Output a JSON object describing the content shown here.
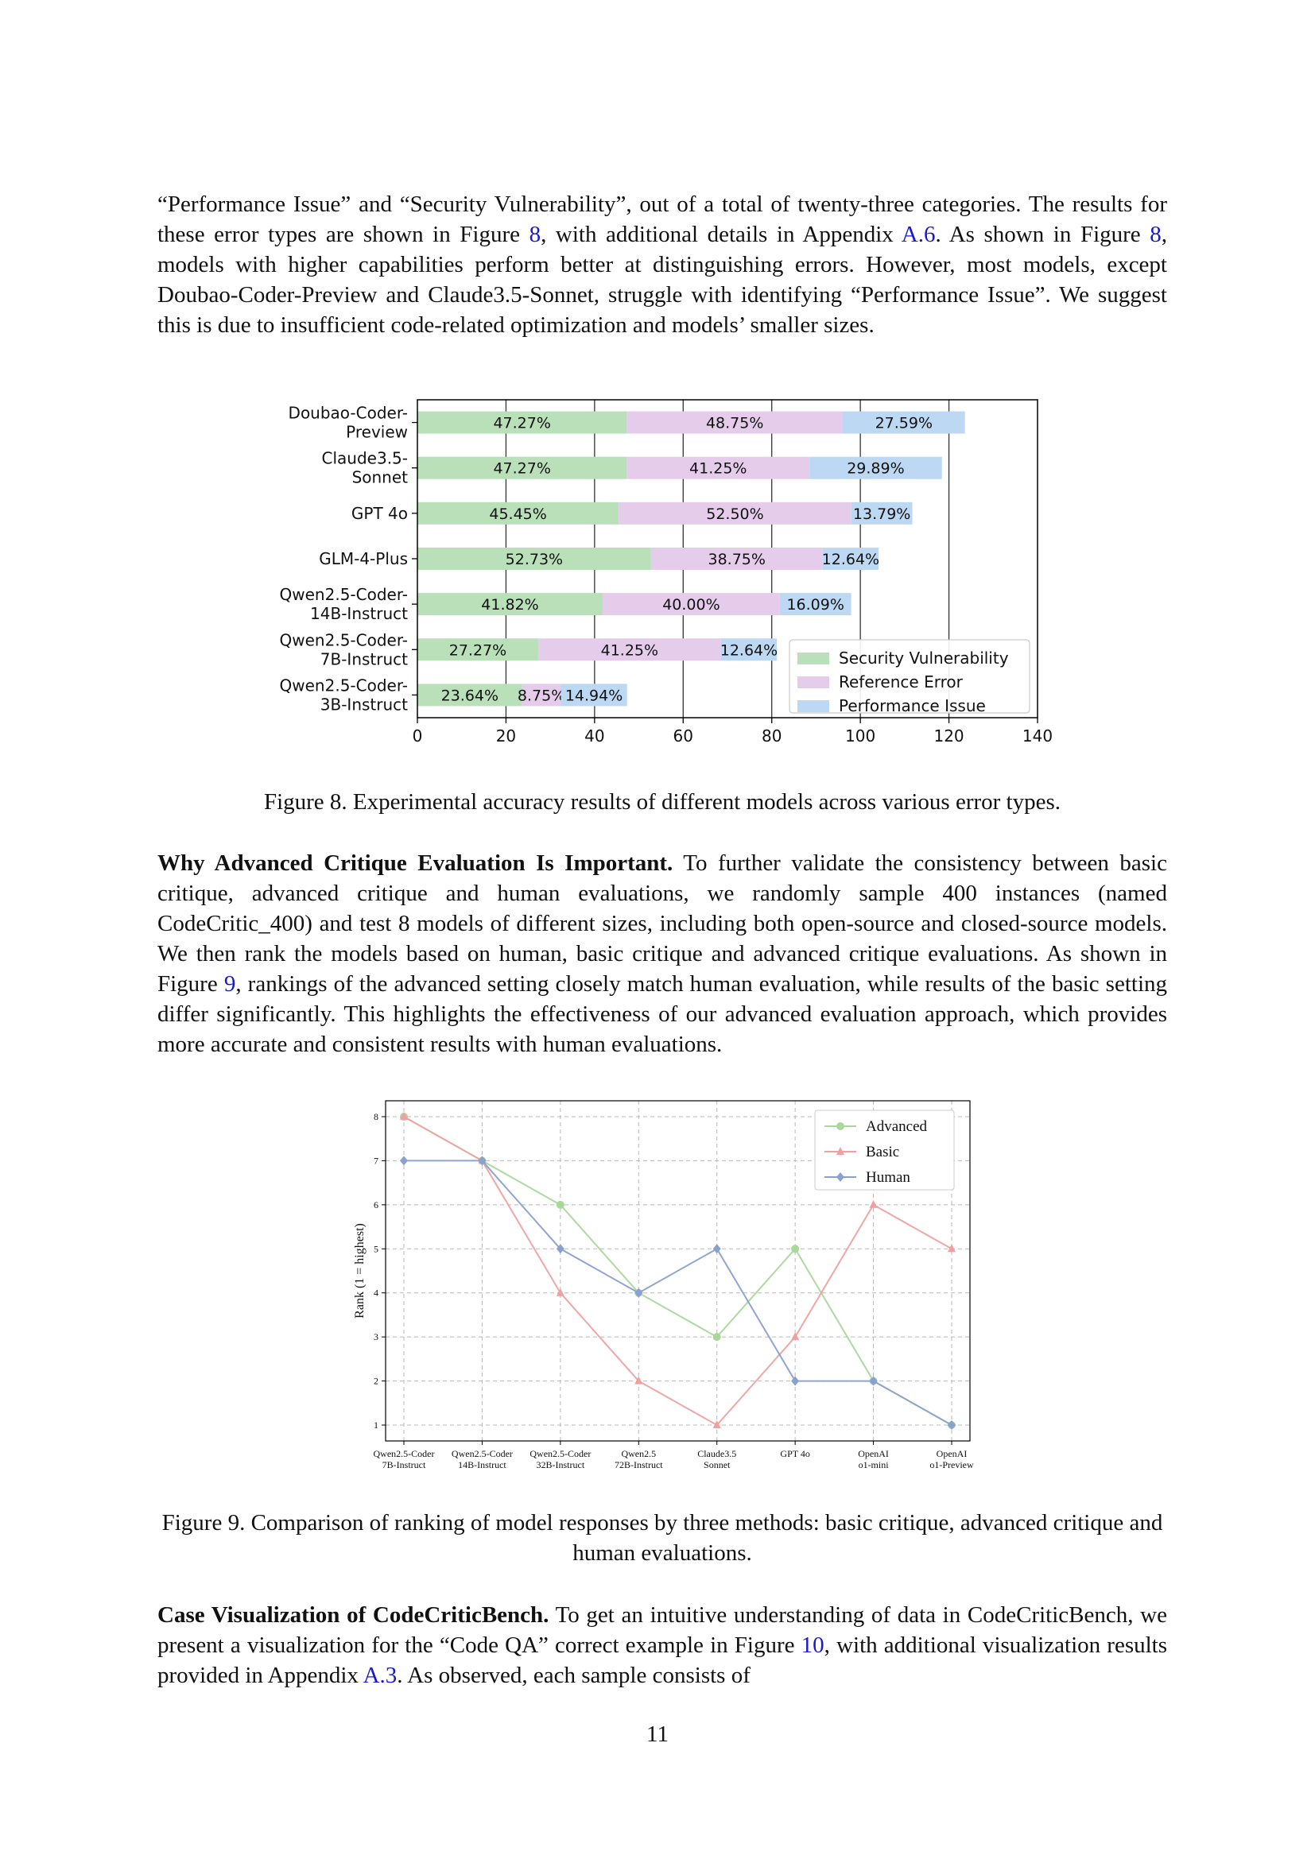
{
  "paragraphs": {
    "p1": {
      "t1": "“Performance Issue” and “Security Vulnerability”, out of a total of twenty-three categories. The results for these error types are shown in Figure ",
      "ref1": "8",
      "t2": ", with additional details in Appendix ",
      "ref2": "A.6",
      "t3": ". As shown in Figure ",
      "ref3": "8",
      "t4": ", models with higher capabilities perform better at distinguishing errors. However, most models, except Doubao-Coder-Preview and Claude3.5-Sonnet, struggle with identifying “Performance Issue”. We suggest this is due to insufficient code-related optimization and models’ smaller sizes."
    },
    "p2": {
      "heading": "Why Advanced Critique Evaluation Is Important.",
      "t1": " To further validate the consistency between basic critique, advanced critique and human evaluations, we randomly sample 400 instances (named CodeCritic_400) and test 8 models of different sizes, including both open-source and closed-source models. We then rank the models based on human, basic critique and advanced critique evaluations.  As shown in Figure ",
      "ref1": "9",
      "t2": ", rankings of the advanced setting closely match human evaluation, while results of the basic setting differ significantly.  This highlights the effectiveness of our advanced evaluation approach, which provides more accurate and consistent results with human evaluations."
    },
    "p3": {
      "heading": "Case Visualization of CodeCriticBench.",
      "t1": " To get an intuitive understanding of data in CodeCriticBench, we present a visualization for the “Code QA” correct example in Figure ",
      "ref1": "10",
      "t2": ", with additional visualization results provided in Appendix ",
      "ref2": "A.3",
      "t3": ". As observed, each sample consists of"
    }
  },
  "captions": {
    "fig8": "Figure 8. Experimental accuracy results of different models across various error types.",
    "fig9": "Figure 9. Comparison of ranking of model responses by three methods: basic critique, advanced critique and human evaluations."
  },
  "page_number": "11",
  "colors": {
    "security": "#b9e0b9",
    "reference": "#e5cceb",
    "performance": "#bcd8f2",
    "advanced": "#a8d89a",
    "basic": "#f0a0a0",
    "human": "#8aa0d0"
  },
  "chart_data": [
    {
      "type": "bar",
      "orientation": "horizontal",
      "stacked": true,
      "categories": [
        [
          "Doubao-Coder-",
          "Preview"
        ],
        [
          "Claude3.5-",
          "Sonnet"
        ],
        [
          "GPT 4o"
        ],
        [
          "GLM-4-Plus"
        ],
        [
          "Qwen2.5-Coder-",
          "14B-Instruct"
        ],
        [
          "Qwen2.5-Coder-",
          "7B-Instruct"
        ],
        [
          "Qwen2.5-Coder-",
          "3B-Instruct"
        ]
      ],
      "series": [
        {
          "name": "Security Vulnerability",
          "values": [
            47.27,
            47.27,
            45.45,
            52.73,
            41.82,
            27.27,
            23.64
          ],
          "labels": [
            "47.27%",
            "47.27%",
            "45.45%",
            "52.73%",
            "41.82%",
            "27.27%",
            "23.64%"
          ]
        },
        {
          "name": "Reference Error",
          "values": [
            48.75,
            41.25,
            52.5,
            38.75,
            40.0,
            41.25,
            8.75
          ],
          "labels": [
            "48.75%",
            "41.25%",
            "52.50%",
            "38.75%",
            "40.00%",
            "41.25%",
            "8.75%"
          ]
        },
        {
          "name": "Performance Issue",
          "values": [
            27.59,
            29.89,
            13.79,
            12.64,
            16.09,
            12.64,
            14.94
          ],
          "labels": [
            "27.59%",
            "29.89%",
            "13.79%",
            "12.64%",
            "16.09%",
            "12.64%",
            "14.94%"
          ]
        }
      ],
      "xlim": [
        0,
        140
      ],
      "xticks": [
        "0",
        "20",
        "40",
        "60",
        "80",
        "100",
        "120",
        "140"
      ],
      "grid": "vertical",
      "legend_position": "lower-right"
    },
    {
      "type": "line",
      "categories": [
        [
          "Qwen2.5-Coder",
          "7B-Instruct"
        ],
        [
          "Qwen2.5-Coder",
          "14B-Instruct"
        ],
        [
          "Qwen2.5-Coder",
          "32B-Instruct"
        ],
        [
          "Qwen2.5",
          "72B-Instruct"
        ],
        [
          "Claude3.5",
          "Sonnet"
        ],
        [
          "GPT 4o"
        ],
        [
          "OpenAI",
          "o1-mini"
        ],
        [
          "OpenAI",
          "o1-Preview"
        ]
      ],
      "series": [
        {
          "name": "Advanced",
          "marker": "circle",
          "values": [
            8,
            7,
            6,
            4,
            3,
            5,
            2,
            1
          ]
        },
        {
          "name": "Basic",
          "marker": "triangle",
          "values": [
            8,
            7,
            4,
            2,
            1,
            3,
            6,
            5
          ]
        },
        {
          "name": "Human",
          "marker": "diamond",
          "values": [
            7,
            7,
            5,
            4,
            5,
            2,
            2,
            1
          ]
        }
      ],
      "ylabel": "Rank (1 = highest)",
      "ylim": [
        1,
        8
      ],
      "yticks": [
        "1",
        "2",
        "3",
        "4",
        "5",
        "6",
        "7",
        "8"
      ],
      "grid": "both-dashed",
      "legend_position": "top-right"
    }
  ]
}
